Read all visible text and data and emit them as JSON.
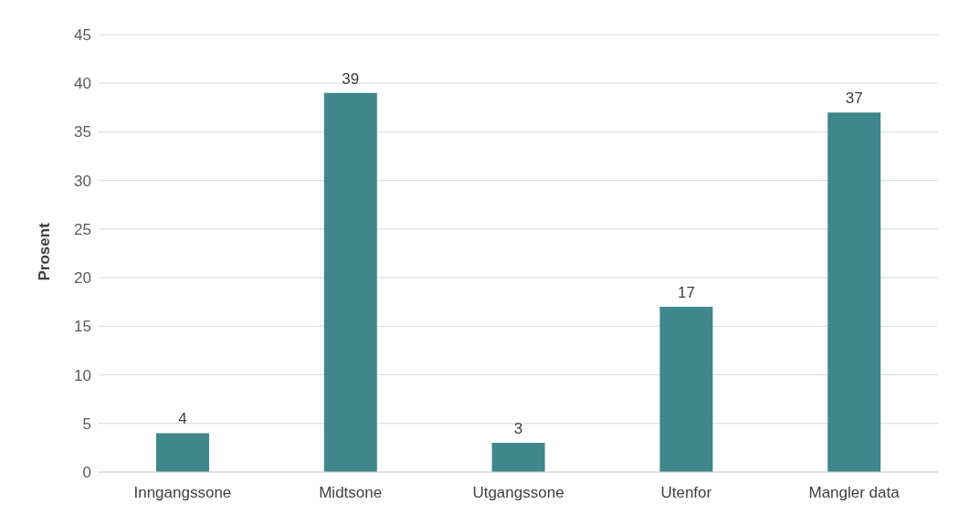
{
  "chart_data": {
    "type": "bar",
    "ylabel": "Prosent",
    "categories": [
      "Inngangssone",
      "Midtsone",
      "Utgangssone",
      "Utenfor",
      "Mangler data"
    ],
    "values": [
      4,
      39,
      3,
      17,
      37
    ],
    "color": "#3f878b",
    "ylim": [
      0,
      45
    ],
    "yticks": [
      0,
      5,
      10,
      15,
      20,
      25,
      30,
      35,
      40,
      45
    ],
    "grid": "y",
    "data_labels": true
  }
}
